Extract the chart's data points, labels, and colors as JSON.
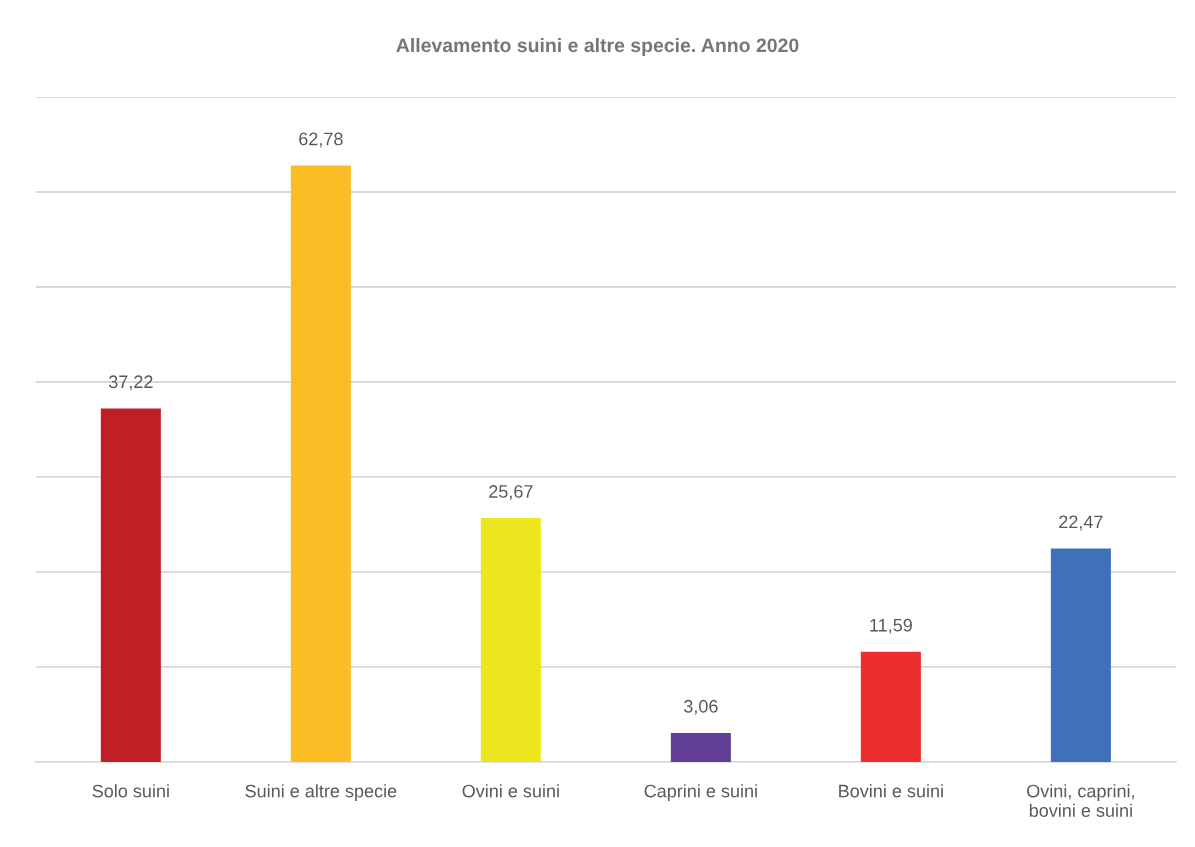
{
  "chart_data": {
    "type": "bar",
    "title": "Allevamento suini e altre specie. Anno 2020",
    "categories": [
      "Solo suini",
      "Suini e altre specie",
      "Ovini e suini",
      "Caprini e suini",
      "Bovini e suini",
      "Ovini, caprini,\nbovini e suini"
    ],
    "values": [
      37.22,
      62.78,
      25.67,
      3.06,
      11.59,
      22.47
    ],
    "colors": [
      "#c01f26",
      "#fbbd26",
      "#ebe61e",
      "#623f97",
      "#ee2d2d",
      "#3f71b8"
    ],
    "value_labels": [
      "37,22",
      "62,78",
      "25,67",
      "3,06",
      "11,59",
      "22,47"
    ],
    "ylim": [
      0,
      70
    ],
    "yticks": [
      {
        "value": 0,
        "label": null
      },
      {
        "value": 10,
        "label": null
      },
      {
        "value": 20,
        "label": null
      },
      {
        "value": 30,
        "label": null
      },
      {
        "value": 40,
        "label": null
      },
      {
        "value": 50,
        "label": null
      },
      {
        "value": 60,
        "label": null
      },
      {
        "value": 70,
        "label": null
      }
    ],
    "grid": "y",
    "tick_labels": "x",
    "legend": false
  }
}
